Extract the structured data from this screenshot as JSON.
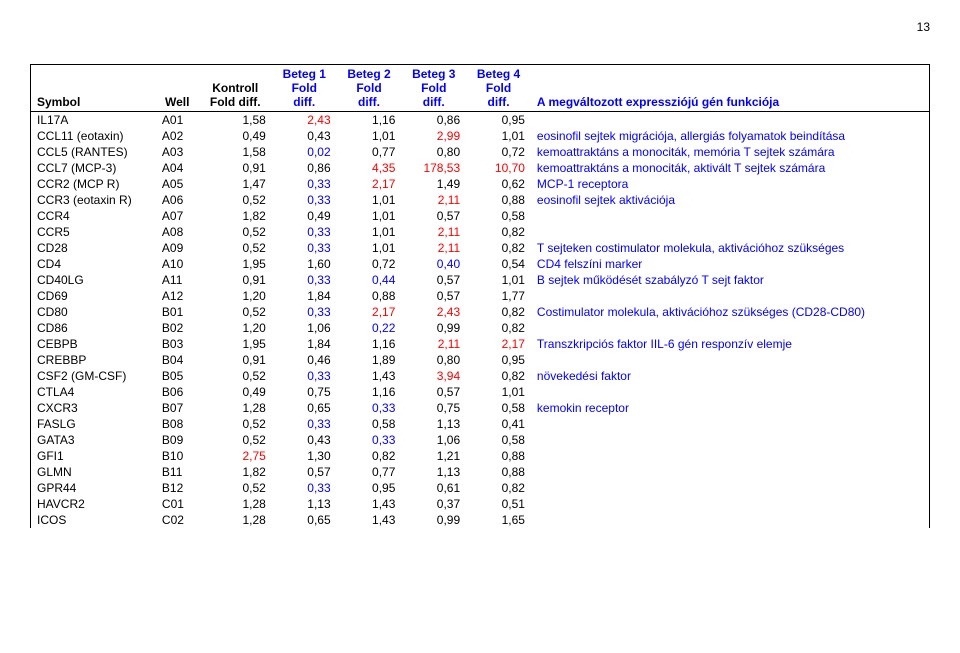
{
  "page_number": "13",
  "columns": [
    "Symbol",
    "Well",
    "Kontroll Fold diff.",
    "Beteg 1 Fold diff.",
    "Beteg 2 Fold diff.",
    "Beteg 3 Fold diff.",
    "Beteg 4 Fold diff.",
    "A megváltozott expressziójú gén funkciója"
  ],
  "header_colors": {
    "default": "#000000",
    "highlight": "#0000ff"
  },
  "value_colors": {
    "black": "#000000",
    "red": "#ff0000",
    "blue": "#0000ff"
  },
  "func_color": "#0000ff",
  "rows": [
    {
      "symbol": "IL17A",
      "well": "A01",
      "v": [
        [
          "1,58",
          "black"
        ],
        [
          "2,43",
          "red"
        ],
        [
          "1,16",
          "black"
        ],
        [
          "0,86",
          "black"
        ],
        [
          "0,95",
          "black"
        ]
      ],
      "func": ""
    },
    {
      "symbol": "CCL11 (eotaxin)",
      "well": "A02",
      "v": [
        [
          "0,49",
          "black"
        ],
        [
          "0,43",
          "black"
        ],
        [
          "1,01",
          "black"
        ],
        [
          "2,99",
          "red"
        ],
        [
          "1,01",
          "black"
        ]
      ],
      "func": "eosinofil sejtek migrációja, allergiás folyamatok beindítása"
    },
    {
      "symbol": "CCL5 (RANTES)",
      "well": "A03",
      "v": [
        [
          "1,58",
          "black"
        ],
        [
          "0,02",
          "blue"
        ],
        [
          "0,77",
          "black"
        ],
        [
          "0,80",
          "black"
        ],
        [
          "0,72",
          "black"
        ]
      ],
      "func": "kemoattraktáns a monociták, memória T sejtek számára"
    },
    {
      "symbol": "CCL7 (MCP-3)",
      "well": "A04",
      "v": [
        [
          "0,91",
          "black"
        ],
        [
          "0,86",
          "black"
        ],
        [
          "4,35",
          "red"
        ],
        [
          "178,53",
          "red"
        ],
        [
          "10,70",
          "red"
        ]
      ],
      "func": "kemoattraktáns a monociták, aktivált T sejtek számára"
    },
    {
      "symbol": "CCR2 (MCP R)",
      "well": "A05",
      "v": [
        [
          "1,47",
          "black"
        ],
        [
          "0,33",
          "blue"
        ],
        [
          "2,17",
          "red"
        ],
        [
          "1,49",
          "black"
        ],
        [
          "0,62",
          "black"
        ]
      ],
      "func": "MCP-1 receptora"
    },
    {
      "symbol": "CCR3 (eotaxin R)",
      "well": "A06",
      "v": [
        [
          "0,52",
          "black"
        ],
        [
          "0,33",
          "blue"
        ],
        [
          "1,01",
          "black"
        ],
        [
          "2,11",
          "red"
        ],
        [
          "0,88",
          "black"
        ]
      ],
      "func": "eosinofil sejtek aktivációja"
    },
    {
      "symbol": "CCR4",
      "well": "A07",
      "v": [
        [
          "1,82",
          "black"
        ],
        [
          "0,49",
          "black"
        ],
        [
          "1,01",
          "black"
        ],
        [
          "0,57",
          "black"
        ],
        [
          "0,58",
          "black"
        ]
      ],
      "func": ""
    },
    {
      "symbol": "CCR5",
      "well": "A08",
      "v": [
        [
          "0,52",
          "black"
        ],
        [
          "0,33",
          "blue"
        ],
        [
          "1,01",
          "black"
        ],
        [
          "2,11",
          "red"
        ],
        [
          "0,82",
          "black"
        ]
      ],
      "func": ""
    },
    {
      "symbol": "CD28",
      "well": "A09",
      "v": [
        [
          "0,52",
          "black"
        ],
        [
          "0,33",
          "blue"
        ],
        [
          "1,01",
          "black"
        ],
        [
          "2,11",
          "red"
        ],
        [
          "0,82",
          "black"
        ]
      ],
      "func": "T sejteken costimulator molekula, aktivációhoz szükséges"
    },
    {
      "symbol": "CD4",
      "well": "A10",
      "v": [
        [
          "1,95",
          "black"
        ],
        [
          "1,60",
          "black"
        ],
        [
          "0,72",
          "black"
        ],
        [
          "0,40",
          "blue"
        ],
        [
          "0,54",
          "black"
        ]
      ],
      "func": "CD4 felszíni marker"
    },
    {
      "symbol": "CD40LG",
      "well": "A11",
      "v": [
        [
          "0,91",
          "black"
        ],
        [
          "0,33",
          "blue"
        ],
        [
          "0,44",
          "blue"
        ],
        [
          "0,57",
          "black"
        ],
        [
          "1,01",
          "black"
        ]
      ],
      "func": "B sejtek működését szabályzó T sejt faktor"
    },
    {
      "symbol": "CD69",
      "well": "A12",
      "v": [
        [
          "1,20",
          "black"
        ],
        [
          "1,84",
          "black"
        ],
        [
          "0,88",
          "black"
        ],
        [
          "0,57",
          "black"
        ],
        [
          "1,77",
          "black"
        ]
      ],
      "func": ""
    },
    {
      "symbol": "CD80",
      "well": "B01",
      "v": [
        [
          "0,52",
          "black"
        ],
        [
          "0,33",
          "blue"
        ],
        [
          "2,17",
          "red"
        ],
        [
          "2,43",
          "red"
        ],
        [
          "0,82",
          "black"
        ]
      ],
      "func": "Costimulator molekula, aktivációhoz szükséges (CD28-CD80)"
    },
    {
      "symbol": "CD86",
      "well": "B02",
      "v": [
        [
          "1,20",
          "black"
        ],
        [
          "1,06",
          "black"
        ],
        [
          "0,22",
          "blue"
        ],
        [
          "0,99",
          "black"
        ],
        [
          "0,82",
          "black"
        ]
      ],
      "func": ""
    },
    {
      "symbol": "CEBPB",
      "well": "B03",
      "v": [
        [
          "1,95",
          "black"
        ],
        [
          "1,84",
          "black"
        ],
        [
          "1,16",
          "black"
        ],
        [
          "2,11",
          "red"
        ],
        [
          "2,17",
          "red"
        ]
      ],
      "func": "Transzkripciós faktor IIL-6 gén responzív elemje"
    },
    {
      "symbol": "CREBBP",
      "well": "B04",
      "v": [
        [
          "0,91",
          "black"
        ],
        [
          "0,46",
          "black"
        ],
        [
          "1,89",
          "black"
        ],
        [
          "0,80",
          "black"
        ],
        [
          "0,95",
          "black"
        ]
      ],
      "func": ""
    },
    {
      "symbol": "CSF2 (GM-CSF)",
      "well": "B05",
      "v": [
        [
          "0,52",
          "black"
        ],
        [
          "0,33",
          "blue"
        ],
        [
          "1,43",
          "black"
        ],
        [
          "3,94",
          "red"
        ],
        [
          "0,82",
          "black"
        ]
      ],
      "func": "növekedési faktor"
    },
    {
      "symbol": "CTLA4",
      "well": "B06",
      "v": [
        [
          "0,49",
          "black"
        ],
        [
          "0,75",
          "black"
        ],
        [
          "1,16",
          "black"
        ],
        [
          "0,57",
          "black"
        ],
        [
          "1,01",
          "black"
        ]
      ],
      "func": ""
    },
    {
      "symbol": "CXCR3",
      "well": "B07",
      "v": [
        [
          "1,28",
          "black"
        ],
        [
          "0,65",
          "black"
        ],
        [
          "0,33",
          "blue"
        ],
        [
          "0,75",
          "black"
        ],
        [
          "0,58",
          "black"
        ]
      ],
      "func": "kemokin receptor"
    },
    {
      "symbol": "FASLG",
      "well": "B08",
      "v": [
        [
          "0,52",
          "black"
        ],
        [
          "0,33",
          "blue"
        ],
        [
          "0,58",
          "black"
        ],
        [
          "1,13",
          "black"
        ],
        [
          "0,41",
          "black"
        ]
      ],
      "func": ""
    },
    {
      "symbol": "GATA3",
      "well": "B09",
      "v": [
        [
          "0,52",
          "black"
        ],
        [
          "0,43",
          "black"
        ],
        [
          "0,33",
          "blue"
        ],
        [
          "1,06",
          "black"
        ],
        [
          "0,58",
          "black"
        ]
      ],
      "func": ""
    },
    {
      "symbol": "GFI1",
      "well": "B10",
      "v": [
        [
          "2,75",
          "red"
        ],
        [
          "1,30",
          "black"
        ],
        [
          "0,82",
          "black"
        ],
        [
          "1,21",
          "black"
        ],
        [
          "0,88",
          "black"
        ]
      ],
      "func": ""
    },
    {
      "symbol": "GLMN",
      "well": "B11",
      "v": [
        [
          "1,82",
          "black"
        ],
        [
          "0,57",
          "black"
        ],
        [
          "0,77",
          "black"
        ],
        [
          "1,13",
          "black"
        ],
        [
          "0,88",
          "black"
        ]
      ],
      "func": ""
    },
    {
      "symbol": "GPR44",
      "well": "B12",
      "v": [
        [
          "0,52",
          "black"
        ],
        [
          "0,33",
          "blue"
        ],
        [
          "0,95",
          "black"
        ],
        [
          "0,61",
          "black"
        ],
        [
          "0,82",
          "black"
        ]
      ],
      "func": ""
    },
    {
      "symbol": "HAVCR2",
      "well": "C01",
      "v": [
        [
          "1,28",
          "black"
        ],
        [
          "1,13",
          "black"
        ],
        [
          "1,43",
          "black"
        ],
        [
          "0,37",
          "black"
        ],
        [
          "0,51",
          "black"
        ]
      ],
      "func": ""
    },
    {
      "symbol": "ICOS",
      "well": "C02",
      "v": [
        [
          "1,28",
          "black"
        ],
        [
          "0,65",
          "black"
        ],
        [
          "1,43",
          "black"
        ],
        [
          "0,99",
          "black"
        ],
        [
          "1,65",
          "black"
        ]
      ],
      "func": ""
    }
  ]
}
